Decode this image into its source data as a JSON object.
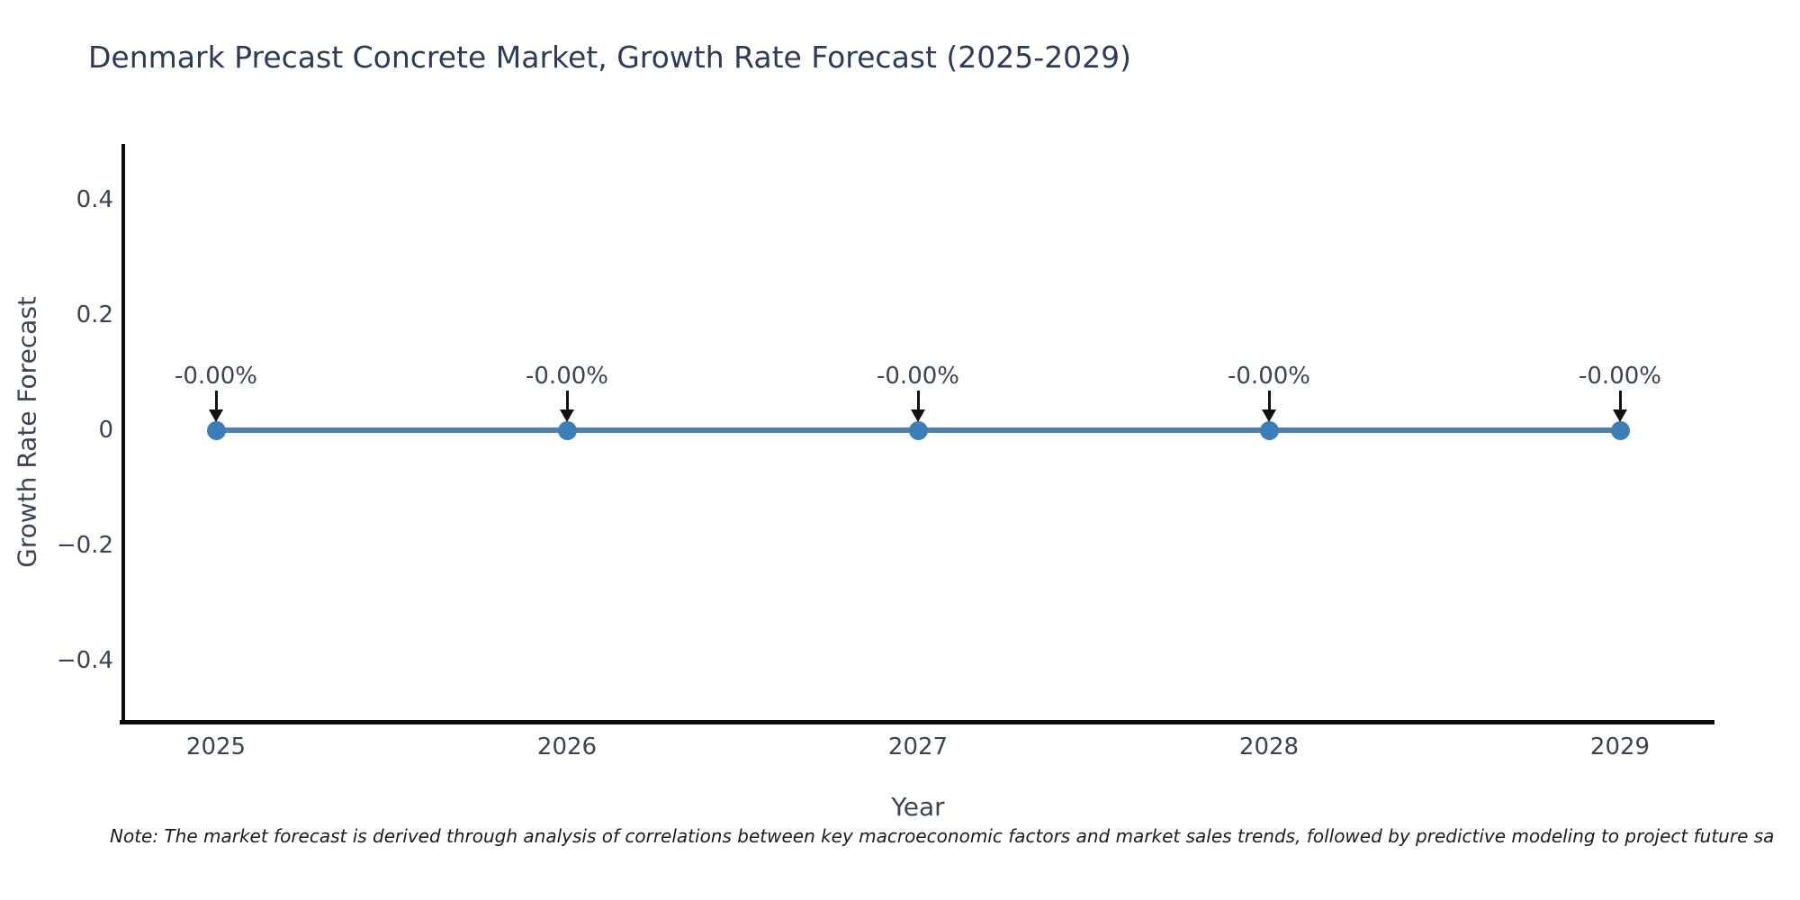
{
  "chart_data": {
    "type": "line",
    "title": "Denmark Precast Concrete Market, Growth Rate Forecast (2025-2029)",
    "xlabel": "Year",
    "ylabel": "Growth Rate Forecast",
    "x": [
      2025,
      2026,
      2027,
      2028,
      2029
    ],
    "series": [
      {
        "name": "Growth Rate Forecast",
        "values": [
          0,
          0,
          0,
          0,
          0
        ]
      }
    ],
    "point_labels": [
      "-0.00%",
      "-0.00%",
      "-0.00%",
      "-0.00%",
      "-0.00%"
    ],
    "yticks": [
      0.4,
      0.2,
      0,
      -0.2,
      -0.4
    ],
    "ylim": [
      -0.5,
      0.5
    ],
    "grid": false,
    "legend": "none",
    "colors": {
      "line": "#4f80ab",
      "marker": "#3d7eb8",
      "arrow": "#111111",
      "title": "#2e3a59",
      "tick_label": "#3b4452",
      "spine": "#0a0a0a"
    }
  },
  "note": {
    "text": "Note: The market forecast is derived through analysis of correlations between key macroeconomic factors and market sales trends, followed by predictive modeling to project future sa"
  }
}
